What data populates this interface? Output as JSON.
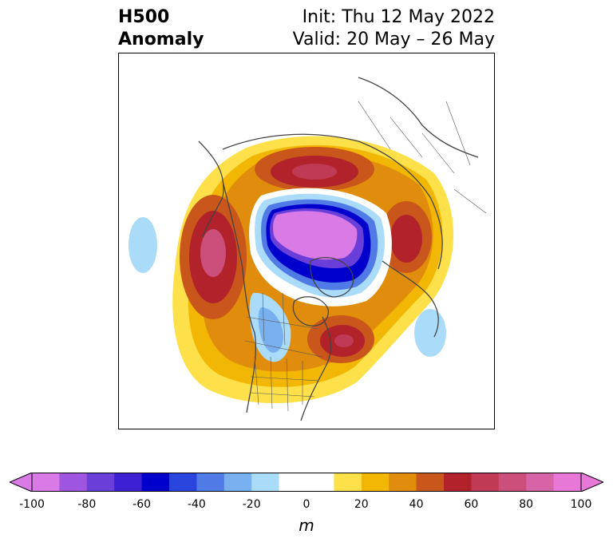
{
  "title": {
    "left_line1": "H500",
    "left_line2": "Anomaly",
    "right_line1": "Init: Thu 12 May 2022",
    "right_line2": "Valid: 20 May – 26 May"
  },
  "colorbar": {
    "unit": "m",
    "ticks": [
      "-100",
      "-80",
      "-60",
      "-40",
      "-20",
      "0",
      "20",
      "40",
      "60",
      "80",
      "100"
    ],
    "bins": [
      "#d97ae6",
      "#9e55e0",
      "#6a3ed8",
      "#3d1fd4",
      "#0000cc",
      "#2a45dd",
      "#507ae6",
      "#78b0f0",
      "#aadcfa",
      "#ffffff",
      "#ffffff",
      "#fde04a",
      "#f2b705",
      "#e08c0c",
      "#c9561a",
      "#b2222a",
      "#c03a55",
      "#cb4f7a",
      "#d864a8",
      "#e878d8"
    ],
    "low_extend_color": "#d97ae6",
    "high_extend_color": "#e878d8"
  }
}
